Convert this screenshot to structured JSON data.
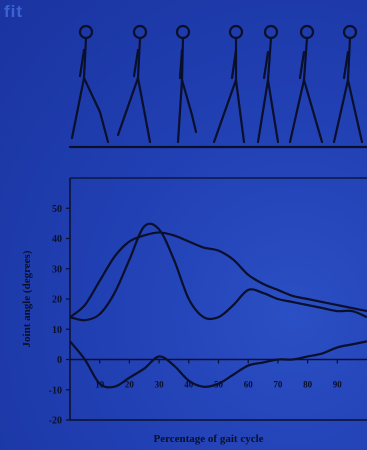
{
  "logo": "fit",
  "chart_data": {
    "type": "line",
    "xlabel": "Percentage of gait cycle",
    "ylabel": "Joint angle (degrees)",
    "xlim": [
      0,
      100
    ],
    "ylim": [
      -20,
      60
    ],
    "yticks": [
      -20,
      -10,
      0,
      10,
      20,
      30,
      40,
      50
    ],
    "xticks": [
      10,
      20,
      30,
      40,
      50,
      60,
      70,
      80,
      90
    ],
    "series": [
      {
        "x": [
          0,
          5,
          10,
          15,
          20,
          25,
          30,
          35,
          40,
          45,
          50,
          55,
          60,
          65,
          70,
          75,
          80,
          85,
          90,
          95,
          100
        ],
        "values": [
          14,
          13,
          15,
          22,
          33,
          44,
          43,
          33,
          20,
          14,
          14,
          18,
          23,
          22,
          20,
          19,
          18,
          17,
          16,
          16,
          14
        ]
      },
      {
        "x": [
          0,
          5,
          10,
          15,
          20,
          25,
          30,
          35,
          40,
          45,
          50,
          55,
          60,
          65,
          70,
          75,
          80,
          85,
          90,
          95,
          100
        ],
        "values": [
          14,
          18,
          26,
          34,
          39,
          41,
          42,
          41,
          39,
          37,
          36,
          33,
          28,
          25,
          23,
          21,
          20,
          19,
          18,
          17,
          16
        ]
      },
      {
        "x": [
          0,
          5,
          10,
          15,
          20,
          25,
          30,
          35,
          40,
          45,
          50,
          55,
          60,
          65,
          70,
          75,
          80,
          85,
          90,
          95,
          100
        ],
        "values": [
          6,
          0,
          -8,
          -9,
          -6,
          -3,
          1,
          -2,
          -7,
          -9,
          -8,
          -5,
          -2,
          -1,
          0,
          0,
          1,
          2,
          4,
          5,
          6
        ]
      }
    ]
  }
}
